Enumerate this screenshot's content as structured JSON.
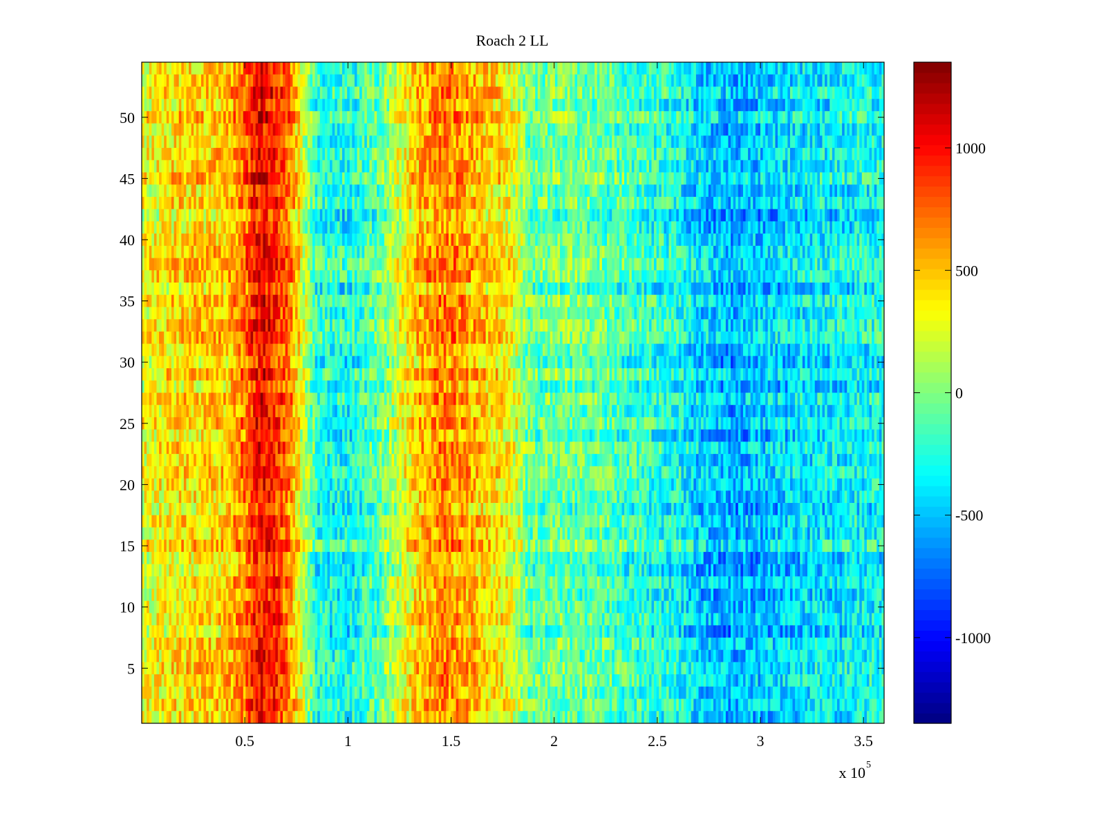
{
  "chart_data": {
    "type": "heatmap",
    "title": "Roach 2 LL",
    "xlabel": "",
    "ylabel": "",
    "x_scale_note": "x 10",
    "x_scale_exponent": "5",
    "xlim": [
      0,
      360000
    ],
    "ylim": [
      0.5,
      54.5
    ],
    "x_ticks": [
      50000,
      100000,
      150000,
      200000,
      250000,
      300000,
      350000
    ],
    "x_tick_labels": [
      "0.5",
      "1",
      "1.5",
      "2",
      "2.5",
      "3",
      "3.5"
    ],
    "y_ticks": [
      5,
      10,
      15,
      20,
      25,
      30,
      35,
      40,
      45,
      50
    ],
    "y_tick_labels": [
      "5",
      "10",
      "15",
      "20",
      "25",
      "30",
      "35",
      "40",
      "45",
      "50"
    ],
    "rows": 54,
    "colormap": "jet",
    "colorbar": {
      "clim": [
        -1350,
        1350
      ],
      "ticks": [
        -1000,
        -500,
        0,
        500,
        1000
      ],
      "tick_labels": [
        "-1000",
        "-500",
        "0",
        "500",
        "1000"
      ]
    },
    "column_profile": {
      "x": [
        0,
        10000,
        20000,
        40000,
        50000,
        55000,
        60000,
        65000,
        72000,
        78000,
        85000,
        100000,
        115000,
        125000,
        135000,
        145000,
        155000,
        165000,
        175000,
        182000,
        188000,
        200000,
        220000,
        240000,
        260000,
        270000,
        285000,
        300000,
        320000,
        340000,
        360000
      ],
      "mean_value": [
        250,
        350,
        400,
        450,
        700,
        950,
        1000,
        900,
        650,
        200,
        -250,
        -300,
        -100,
        200,
        500,
        650,
        600,
        450,
        350,
        200,
        -100,
        -50,
        -100,
        -200,
        -300,
        -450,
        -550,
        -500,
        -400,
        -350,
        -300
      ]
    },
    "grid": false,
    "legend": "none"
  }
}
